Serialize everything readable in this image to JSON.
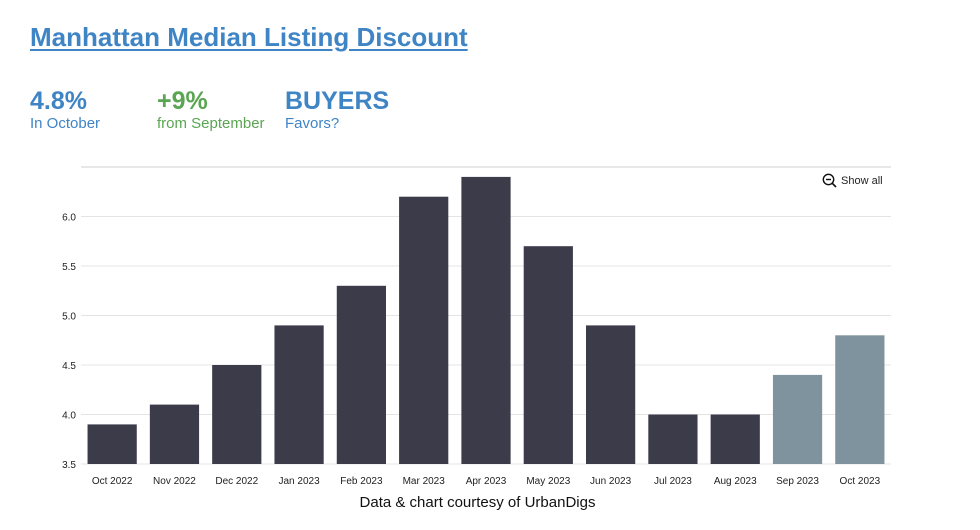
{
  "header": {
    "title": "Manhattan Median Listing Discount"
  },
  "stats": [
    {
      "value": "4.8%",
      "label": "In October"
    },
    {
      "value": "+9%",
      "label": "from September"
    },
    {
      "value": "BUYERS",
      "label": "Favors?"
    }
  ],
  "controls": {
    "show_all_label": "Show all",
    "show_all_icon": "zoom-out-icon"
  },
  "footer": {
    "credit": "Data & chart courtesy of UrbanDigs"
  },
  "colors": {
    "accent_blue": "#3f84c4",
    "accent_green": "#5aa552",
    "bar_historical": "#3c3b4a",
    "bar_recent": "#7f939f"
  },
  "chart_data": {
    "type": "bar",
    "categories": [
      "Oct 2022",
      "Nov 2022",
      "Dec 2022",
      "Jan 2023",
      "Feb 2023",
      "Mar 2023",
      "Apr 2023",
      "May 2023",
      "Jun 2023",
      "Jul 2023",
      "Aug 2023",
      "Sep 2023",
      "Oct 2023"
    ],
    "values": [
      3.9,
      4.1,
      4.5,
      4.9,
      5.3,
      6.2,
      6.4,
      5.7,
      4.9,
      4.0,
      4.0,
      4.4,
      4.8
    ],
    "highlighted": [
      false,
      false,
      false,
      false,
      false,
      false,
      false,
      false,
      false,
      false,
      false,
      true,
      true
    ],
    "yticks": [
      "3.5",
      "4.0",
      "4.5",
      "5.0",
      "5.5",
      "6.0"
    ],
    "ylim": [
      3.5,
      6.5
    ],
    "grid": true,
    "xlabel": "",
    "ylabel": ""
  }
}
